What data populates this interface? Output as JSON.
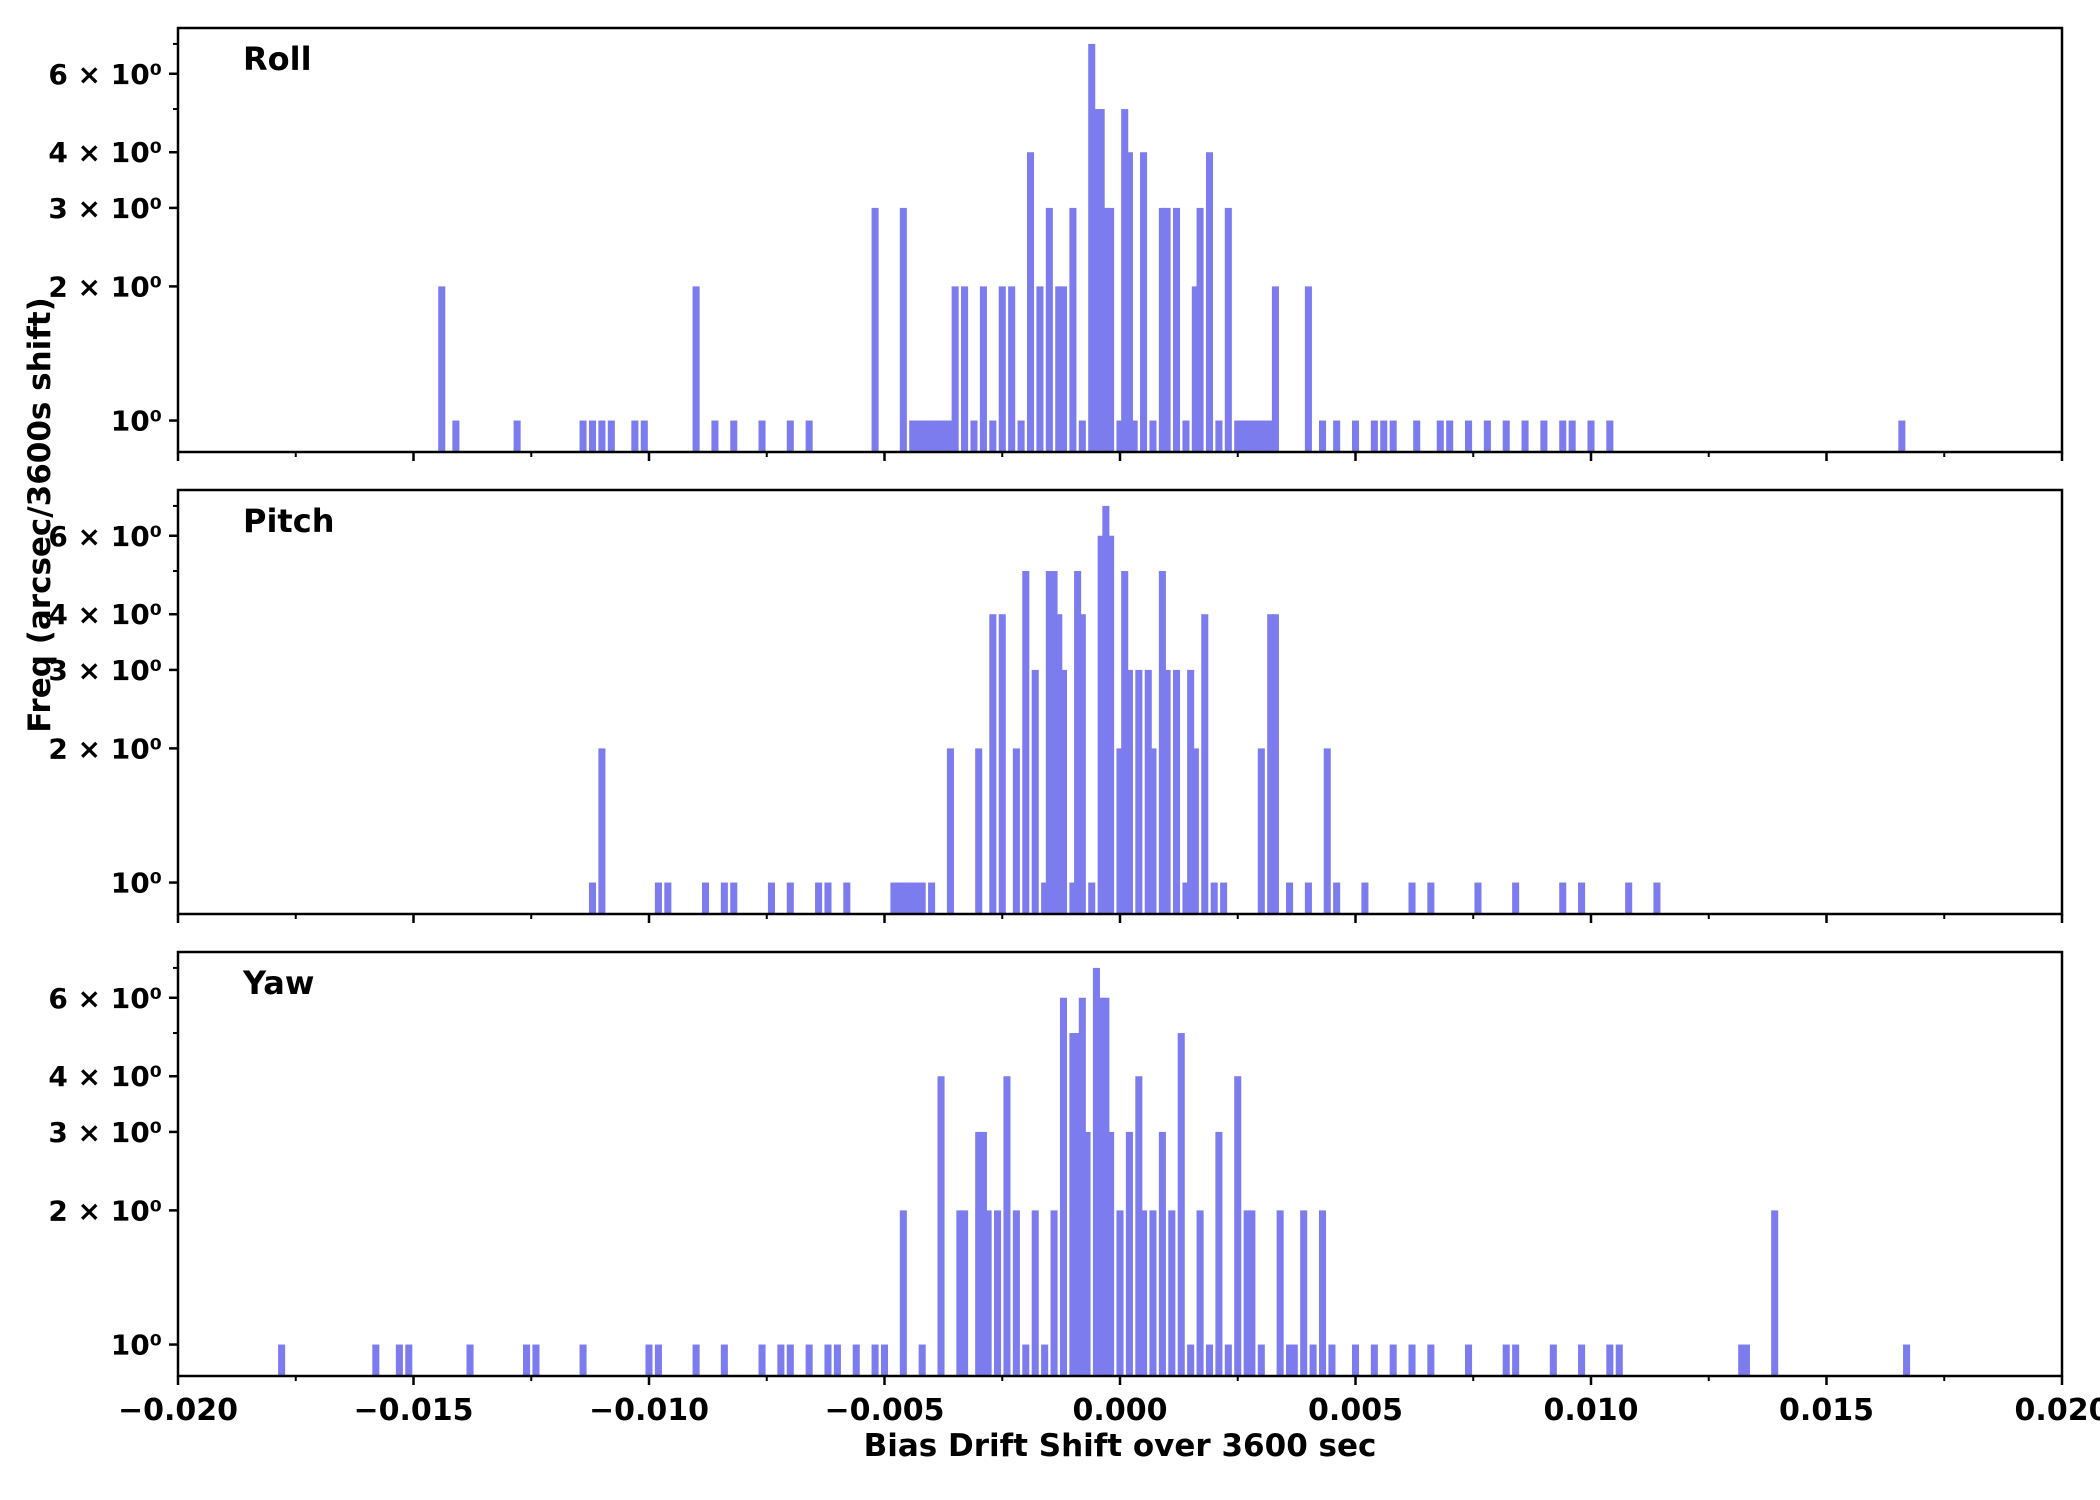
{
  "figure": {
    "background": "#ffffff",
    "bar_color": "#7d7cee",
    "axis_color": "#000000"
  },
  "chart_data": {
    "type": "bar",
    "subtype": "histogram-log-y",
    "title": "",
    "xlabel": "Bias Drift Shift over 3600 sec",
    "ylabel": "Freq (arcsec/3600s shift)",
    "xlim": [
      -0.02,
      0.02
    ],
    "ylim_log": [
      0.85,
      7.6
    ],
    "yscale": "log",
    "grid": false,
    "legend": "none",
    "bin_width": 0.00015,
    "x_major_ticks": [
      -0.02,
      -0.015,
      -0.01,
      -0.005,
      0.0,
      0.005,
      0.01,
      0.015,
      0.02
    ],
    "x_tick_labels": [
      "−0.020",
      "−0.015",
      "−0.010",
      "−0.005",
      "0.000",
      "0.005",
      "0.010",
      "0.015",
      "0.020"
    ],
    "x_minor_ticks": [
      -0.0175,
      -0.0125,
      -0.0075,
      -0.0025,
      0.0025,
      0.0075,
      0.0125,
      0.0175
    ],
    "y_major_ticks": [
      1,
      2,
      3,
      4,
      6
    ],
    "y_tick_labels": [
      "10⁰",
      "2 × 10⁰",
      "3 × 10⁰",
      "4 × 10⁰",
      "6 × 10⁰"
    ],
    "y_minor_ticks": [
      5,
      7
    ],
    "panels": [
      {
        "label": "Roll",
        "bars": [
          [
            -0.0144,
            2
          ],
          [
            -0.0141,
            1
          ],
          [
            -0.0128,
            1
          ],
          [
            -0.0114,
            1
          ],
          [
            -0.0112,
            1
          ],
          [
            -0.011,
            1
          ],
          [
            -0.0108,
            1
          ],
          [
            -0.0103,
            1
          ],
          [
            -0.0101,
            1
          ],
          [
            -0.009,
            2
          ],
          [
            -0.0086,
            1
          ],
          [
            -0.0082,
            1
          ],
          [
            -0.0076,
            1
          ],
          [
            -0.007,
            1
          ],
          [
            -0.0066,
            1
          ],
          [
            -0.0052,
            3
          ],
          [
            -0.0046,
            3
          ],
          [
            -0.0044,
            1
          ],
          [
            -0.0043,
            1
          ],
          [
            -0.0042,
            1
          ],
          [
            -0.0041,
            1
          ],
          [
            -0.004,
            1
          ],
          [
            -0.0039,
            1
          ],
          [
            -0.0038,
            1
          ],
          [
            -0.0037,
            1
          ],
          [
            -0.0036,
            1
          ],
          [
            -0.0035,
            2
          ],
          [
            -0.0033,
            2
          ],
          [
            -0.0031,
            1
          ],
          [
            -0.0029,
            2
          ],
          [
            -0.0027,
            1
          ],
          [
            -0.0025,
            2
          ],
          [
            -0.0023,
            2
          ],
          [
            -0.0021,
            1
          ],
          [
            -0.0019,
            4
          ],
          [
            -0.0017,
            2
          ],
          [
            -0.0015,
            3
          ],
          [
            -0.0013,
            2
          ],
          [
            -0.0012,
            2
          ],
          [
            -0.001,
            3
          ],
          [
            -0.0008,
            1
          ],
          [
            -0.0006,
            7
          ],
          [
            -0.0005,
            5
          ],
          [
            -0.0004,
            5
          ],
          [
            -0.0003,
            3
          ],
          [
            -0.0002,
            3
          ],
          [
            0.0,
            1
          ],
          [
            0.0001,
            5
          ],
          [
            0.0002,
            4
          ],
          [
            0.0003,
            1
          ],
          [
            0.0005,
            4
          ],
          [
            0.0007,
            1
          ],
          [
            0.0009,
            3
          ],
          [
            0.001,
            3
          ],
          [
            0.0012,
            3
          ],
          [
            0.0014,
            1
          ],
          [
            0.0016,
            2
          ],
          [
            0.0017,
            3
          ],
          [
            0.0019,
            4
          ],
          [
            0.0021,
            1
          ],
          [
            0.0023,
            3
          ],
          [
            0.0025,
            1
          ],
          [
            0.0026,
            1
          ],
          [
            0.0027,
            1
          ],
          [
            0.0028,
            1
          ],
          [
            0.0029,
            1
          ],
          [
            0.003,
            1
          ],
          [
            0.0031,
            1
          ],
          [
            0.0032,
            1
          ],
          [
            0.0033,
            2
          ],
          [
            0.004,
            2
          ],
          [
            0.0043,
            1
          ],
          [
            0.0046,
            1
          ],
          [
            0.005,
            1
          ],
          [
            0.0054,
            1
          ],
          [
            0.0056,
            1
          ],
          [
            0.0058,
            1
          ],
          [
            0.0063,
            1
          ],
          [
            0.0068,
            1
          ],
          [
            0.007,
            1
          ],
          [
            0.0074,
            1
          ],
          [
            0.0078,
            1
          ],
          [
            0.0082,
            1
          ],
          [
            0.0086,
            1
          ],
          [
            0.009,
            1
          ],
          [
            0.0094,
            1
          ],
          [
            0.0096,
            1
          ],
          [
            0.01,
            1
          ],
          [
            0.0104,
            1
          ],
          [
            0.0166,
            1
          ]
        ]
      },
      {
        "label": "Pitch",
        "bars": [
          [
            -0.0112,
            1
          ],
          [
            -0.011,
            2
          ],
          [
            -0.0098,
            1
          ],
          [
            -0.0096,
            1
          ],
          [
            -0.0088,
            1
          ],
          [
            -0.0084,
            1
          ],
          [
            -0.0082,
            1
          ],
          [
            -0.0074,
            1
          ],
          [
            -0.007,
            1
          ],
          [
            -0.0064,
            1
          ],
          [
            -0.0062,
            1
          ],
          [
            -0.0058,
            1
          ],
          [
            -0.0048,
            1
          ],
          [
            -0.0047,
            1
          ],
          [
            -0.0046,
            1
          ],
          [
            -0.0045,
            1
          ],
          [
            -0.0044,
            1
          ],
          [
            -0.0043,
            1
          ],
          [
            -0.0042,
            1
          ],
          [
            -0.004,
            1
          ],
          [
            -0.0036,
            2
          ],
          [
            -0.003,
            2
          ],
          [
            -0.0027,
            4
          ],
          [
            -0.0025,
            4
          ],
          [
            -0.0022,
            2
          ],
          [
            -0.002,
            5
          ],
          [
            -0.0018,
            3
          ],
          [
            -0.0016,
            1
          ],
          [
            -0.0015,
            5
          ],
          [
            -0.0014,
            5
          ],
          [
            -0.0013,
            4
          ],
          [
            -0.0012,
            3
          ],
          [
            -0.001,
            1
          ],
          [
            -0.0009,
            5
          ],
          [
            -0.0008,
            4
          ],
          [
            -0.0006,
            1
          ],
          [
            -0.0004,
            6
          ],
          [
            -0.0003,
            7
          ],
          [
            -0.0002,
            6
          ],
          [
            0.0,
            2
          ],
          [
            0.0001,
            5
          ],
          [
            0.0002,
            3
          ],
          [
            0.0004,
            3
          ],
          [
            0.0006,
            3
          ],
          [
            0.0007,
            2
          ],
          [
            0.0009,
            5
          ],
          [
            0.001,
            3
          ],
          [
            0.0012,
            3
          ],
          [
            0.0014,
            1
          ],
          [
            0.0015,
            3
          ],
          [
            0.0016,
            2
          ],
          [
            0.0018,
            4
          ],
          [
            0.002,
            1
          ],
          [
            0.0022,
            1
          ],
          [
            0.003,
            2
          ],
          [
            0.0032,
            4
          ],
          [
            0.0033,
            4
          ],
          [
            0.0036,
            1
          ],
          [
            0.004,
            1
          ],
          [
            0.0044,
            2
          ],
          [
            0.0046,
            1
          ],
          [
            0.0052,
            1
          ],
          [
            0.0062,
            1
          ],
          [
            0.0066,
            1
          ],
          [
            0.0076,
            1
          ],
          [
            0.0084,
            1
          ],
          [
            0.0094,
            1
          ],
          [
            0.0098,
            1
          ],
          [
            0.0108,
            1
          ],
          [
            0.0114,
            1
          ]
        ]
      },
      {
        "label": "Yaw",
        "bars": [
          [
            -0.0178,
            1
          ],
          [
            -0.0158,
            1
          ],
          [
            -0.0153,
            1
          ],
          [
            -0.0151,
            1
          ],
          [
            -0.0138,
            1
          ],
          [
            -0.0126,
            1
          ],
          [
            -0.0124,
            1
          ],
          [
            -0.0114,
            1
          ],
          [
            -0.01,
            1
          ],
          [
            -0.0098,
            1
          ],
          [
            -0.009,
            1
          ],
          [
            -0.0084,
            1
          ],
          [
            -0.0076,
            1
          ],
          [
            -0.0072,
            1
          ],
          [
            -0.007,
            1
          ],
          [
            -0.0066,
            1
          ],
          [
            -0.0062,
            1
          ],
          [
            -0.006,
            1
          ],
          [
            -0.0056,
            1
          ],
          [
            -0.0052,
            1
          ],
          [
            -0.005,
            1
          ],
          [
            -0.0046,
            2
          ],
          [
            -0.0042,
            1
          ],
          [
            -0.0038,
            4
          ],
          [
            -0.0034,
            2
          ],
          [
            -0.0033,
            2
          ],
          [
            -0.003,
            3
          ],
          [
            -0.0029,
            3
          ],
          [
            -0.0028,
            2
          ],
          [
            -0.0026,
            2
          ],
          [
            -0.0024,
            4
          ],
          [
            -0.0022,
            2
          ],
          [
            -0.002,
            1
          ],
          [
            -0.0018,
            2
          ],
          [
            -0.0016,
            1
          ],
          [
            -0.0014,
            2
          ],
          [
            -0.0012,
            6
          ],
          [
            -0.001,
            5
          ],
          [
            -0.0009,
            5
          ],
          [
            -0.0008,
            6
          ],
          [
            -0.0007,
            3
          ],
          [
            -0.0005,
            7
          ],
          [
            -0.0004,
            6
          ],
          [
            -0.0003,
            6
          ],
          [
            -0.0002,
            3
          ],
          [
            0.0,
            2
          ],
          [
            0.0002,
            3
          ],
          [
            0.0004,
            4
          ],
          [
            0.0005,
            2
          ],
          [
            0.0007,
            2
          ],
          [
            0.0009,
            3
          ],
          [
            0.0011,
            2
          ],
          [
            0.0013,
            5
          ],
          [
            0.0015,
            1
          ],
          [
            0.0017,
            2
          ],
          [
            0.0019,
            1
          ],
          [
            0.0021,
            3
          ],
          [
            0.0023,
            1
          ],
          [
            0.0025,
            4
          ],
          [
            0.0027,
            2
          ],
          [
            0.0028,
            2
          ],
          [
            0.003,
            1
          ],
          [
            0.0034,
            2
          ],
          [
            0.0036,
            1
          ],
          [
            0.0037,
            1
          ],
          [
            0.0039,
            2
          ],
          [
            0.0041,
            1
          ],
          [
            0.0043,
            2
          ],
          [
            0.0045,
            1
          ],
          [
            0.005,
            1
          ],
          [
            0.0054,
            1
          ],
          [
            0.0058,
            1
          ],
          [
            0.0062,
            1
          ],
          [
            0.0066,
            1
          ],
          [
            0.0074,
            1
          ],
          [
            0.0082,
            1
          ],
          [
            0.0084,
            1
          ],
          [
            0.0092,
            1
          ],
          [
            0.0098,
            1
          ],
          [
            0.0104,
            1
          ],
          [
            0.0106,
            1
          ],
          [
            0.0132,
            1
          ],
          [
            0.0133,
            1
          ],
          [
            0.0139,
            2
          ],
          [
            0.0167,
            1
          ]
        ]
      }
    ]
  }
}
